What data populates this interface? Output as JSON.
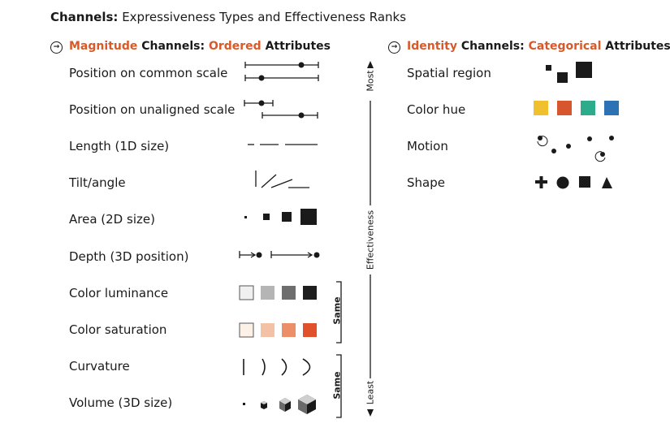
{
  "title": {
    "bold": "Channels:",
    "rest": " Expressiveness Types and Effectiveness Ranks"
  },
  "magnitude": {
    "arrow": "→",
    "w1": "Magnitude",
    "w2": " Channels: ",
    "w3": "Ordered",
    "w4": " Attributes",
    "items": [
      "Position on common scale",
      "Position on unaligned scale",
      "Length (1D size)",
      "Tilt/angle",
      "Area (2D size)",
      "Depth (3D position)",
      "Color luminance",
      "Color saturation",
      "Curvature",
      "Volume (3D size)"
    ]
  },
  "identity": {
    "arrow": "→",
    "w1": "Identity",
    "w2": " Channels: ",
    "w3": "Categorical",
    "w4": " Attributes",
    "items": [
      "Spatial region",
      "Color hue",
      "Motion",
      "Shape"
    ]
  },
  "scale": {
    "most": "Most",
    "effectiveness": "Effectiveness",
    "least": "Least",
    "same1": "Same",
    "same2": "Same"
  },
  "colors": {
    "accent": "#d8592a",
    "luminance": [
      "#f0f0f0",
      "#b5b5b5",
      "#6e6e6e",
      "#1e1e1e"
    ],
    "saturation": [
      "#fdf0e6",
      "#f3c1a6",
      "#ec8e67",
      "#e1522c"
    ],
    "hue": [
      "#f0c12c",
      "#d8562d",
      "#2cac8c",
      "#2e72b6"
    ]
  }
}
